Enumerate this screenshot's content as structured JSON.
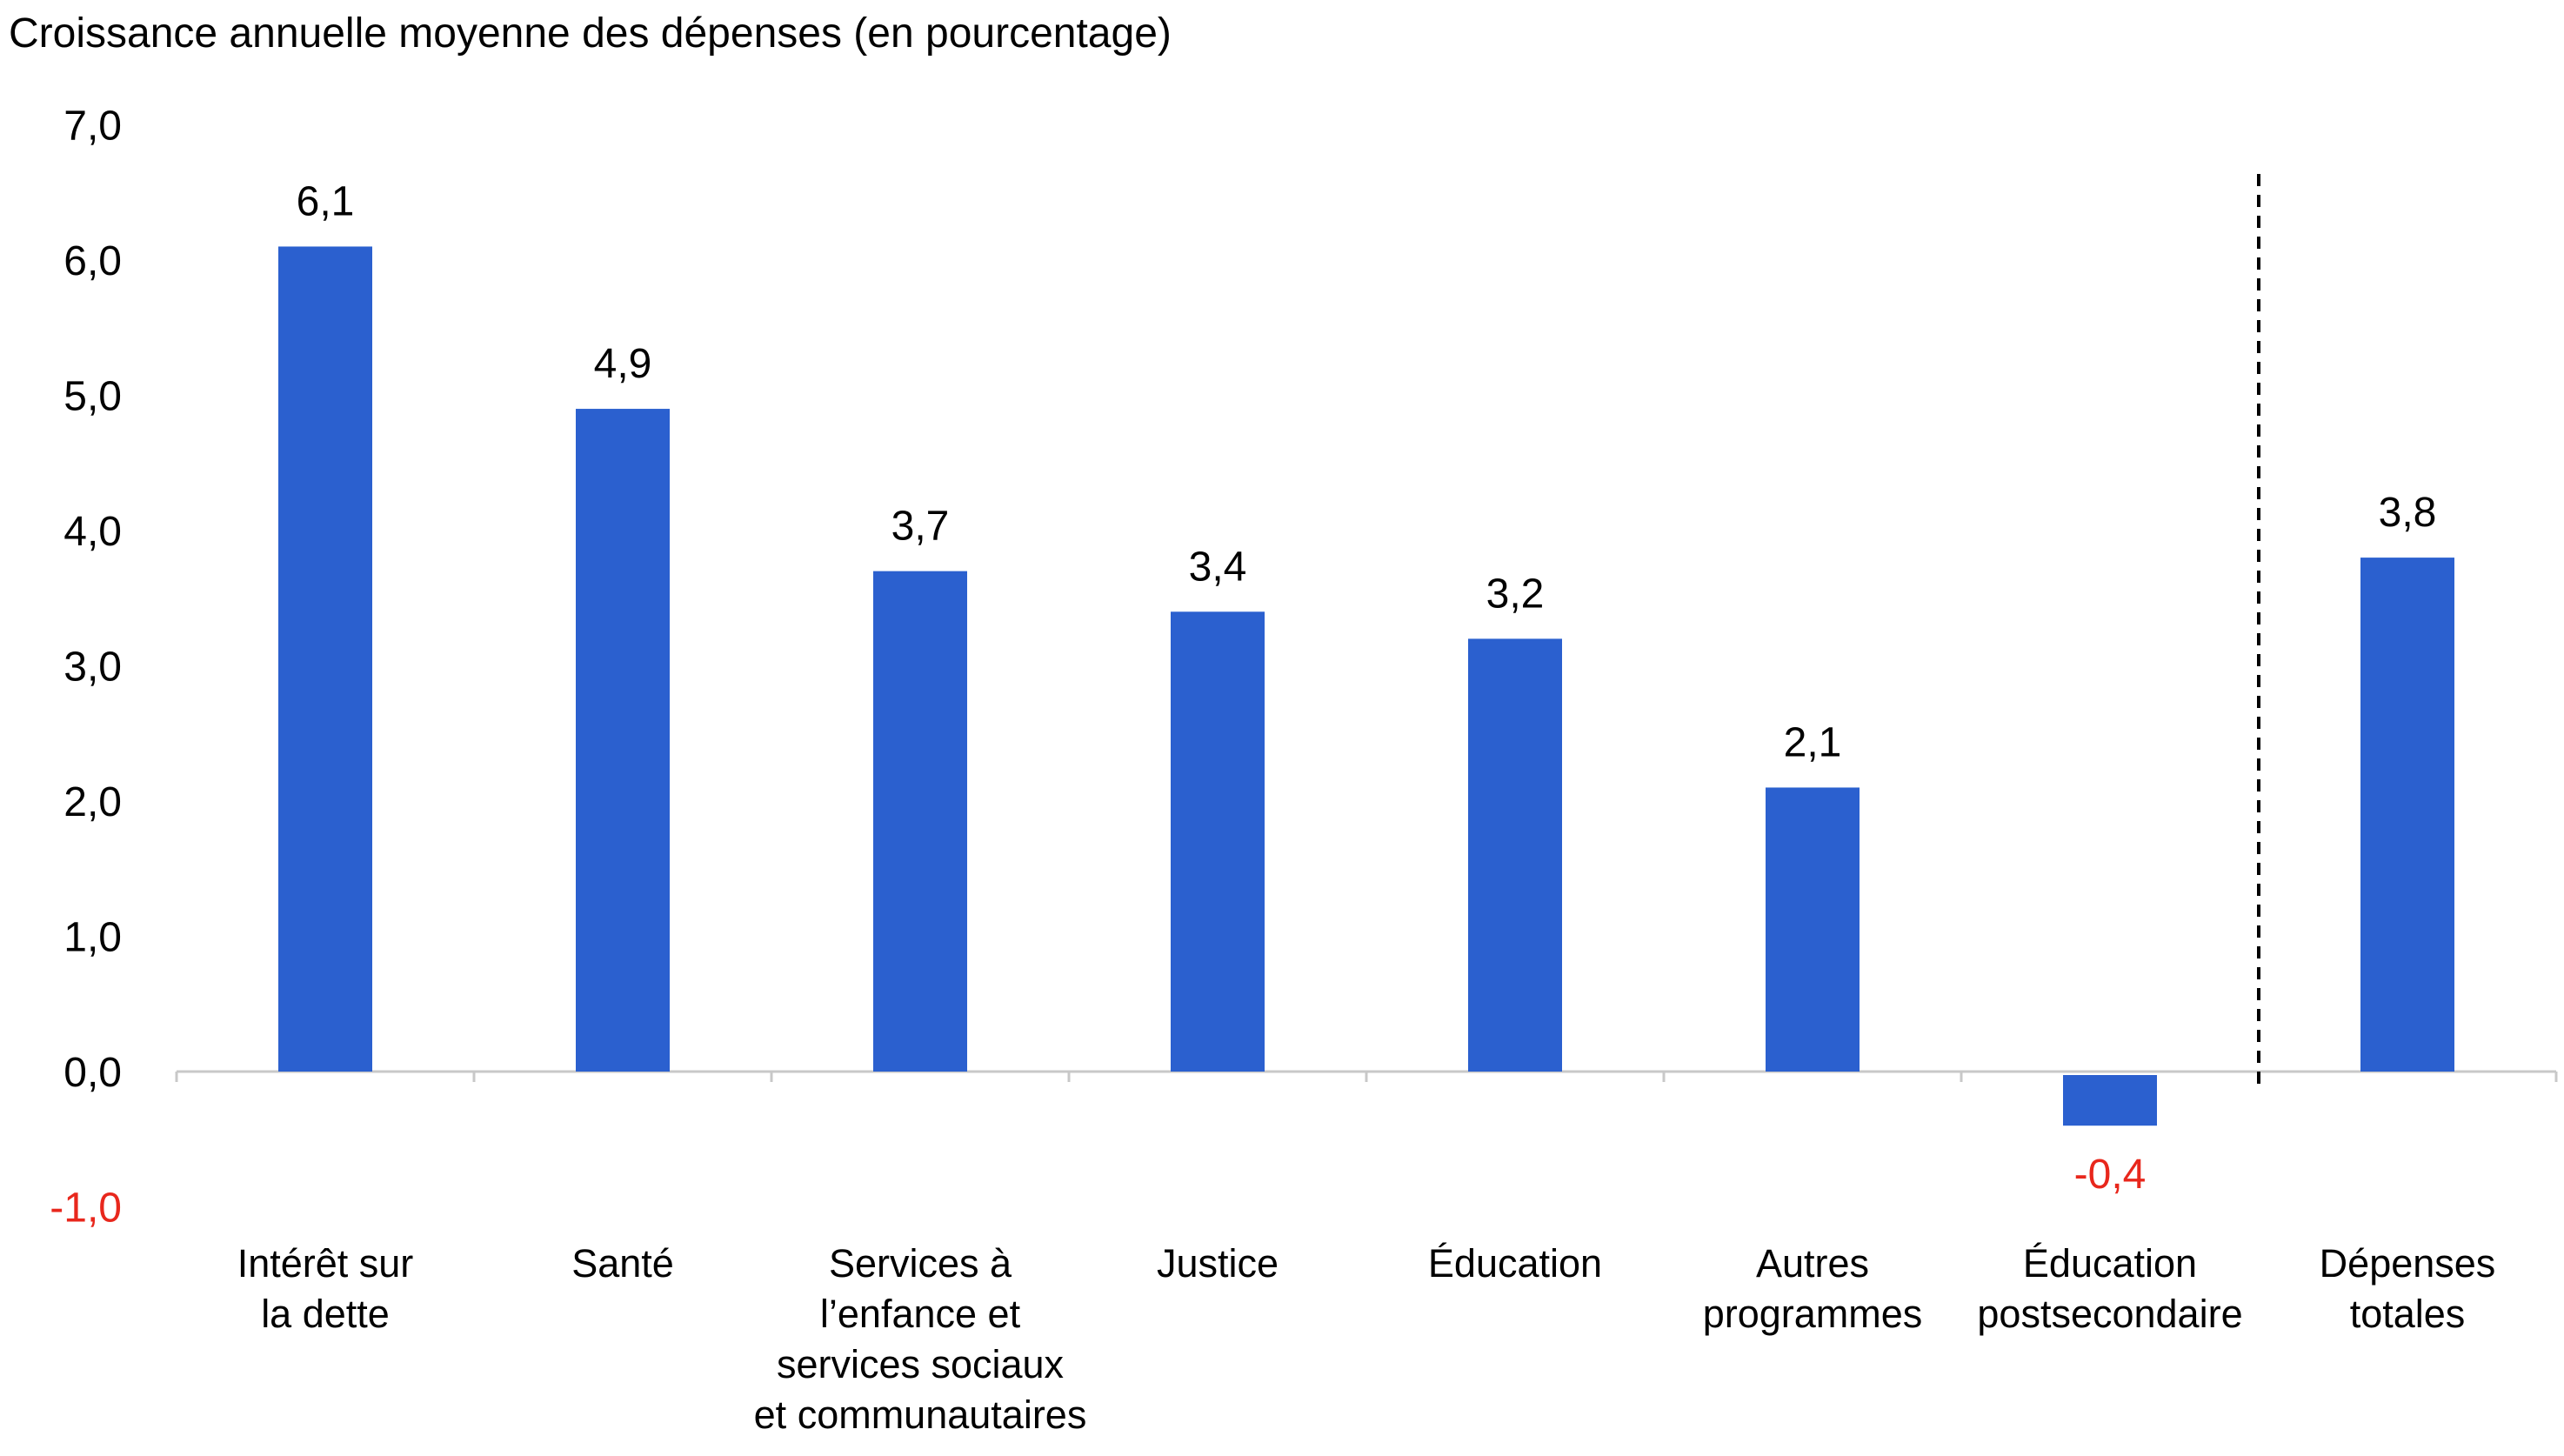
{
  "chart_data": {
    "type": "bar",
    "title": "Croissance annuelle moyenne des dépenses (en pourcentage)",
    "xlabel": "",
    "ylabel": "",
    "ylim": [
      -1.0,
      7.0
    ],
    "y_ticks": [
      "-1,0",
      "0,0",
      "1,0",
      "2,0",
      "3,0",
      "4,0",
      "5,0",
      "6,0",
      "7,0"
    ],
    "grid": false,
    "legend": "none",
    "categories": [
      [
        "Intérêt sur",
        "la dette"
      ],
      [
        "Santé"
      ],
      [
        "Services à",
        "l’enfance et",
        "services sociaux",
        "et communautaires"
      ],
      [
        "Justice"
      ],
      [
        "Éducation"
      ],
      [
        "Autres",
        "programmes"
      ],
      [
        "Éducation",
        "postsecondaire"
      ],
      [
        "Dépenses",
        "totales"
      ]
    ],
    "values": [
      6.1,
      4.9,
      3.7,
      3.4,
      3.2,
      2.1,
      -0.4,
      3.8
    ],
    "data_labels": [
      "6,1",
      "4,9",
      "3,7",
      "3,4",
      "3,2",
      "2,1",
      "-0,4",
      "3,8"
    ],
    "separator_before_category": 7,
    "colors": {
      "bar": "#2b60cf",
      "negative_text": "#e8271c",
      "axis": "#c8c8c8",
      "separator": "#000000"
    }
  }
}
